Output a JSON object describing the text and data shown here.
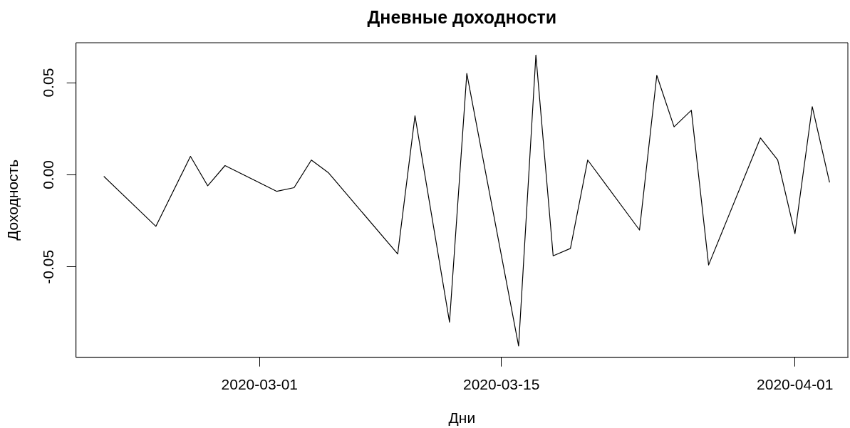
{
  "chart_data": {
    "type": "line",
    "title": "Дневные доходности",
    "xlabel": "Дни",
    "ylabel": "Доходность",
    "x": [
      "2020-02-21",
      "2020-02-24",
      "2020-02-26",
      "2020-02-27",
      "2020-02-28",
      "2020-03-02",
      "2020-03-03",
      "2020-03-04",
      "2020-03-05",
      "2020-03-09",
      "2020-03-10",
      "2020-03-12",
      "2020-03-13",
      "2020-03-16",
      "2020-03-17",
      "2020-03-18",
      "2020-03-19",
      "2020-03-20",
      "2020-03-23",
      "2020-03-24",
      "2020-03-25",
      "2020-03-26",
      "2020-03-27",
      "2020-03-30",
      "2020-03-31",
      "2020-04-01",
      "2020-04-02",
      "2020-04-03"
    ],
    "values": [
      -0.001,
      -0.028,
      0.01,
      -0.006,
      0.005,
      -0.009,
      -0.007,
      0.008,
      0.001,
      -0.043,
      0.032,
      -0.08,
      0.055,
      -0.093,
      0.065,
      -0.044,
      -0.04,
      0.008,
      -0.03,
      0.054,
      0.026,
      0.035,
      -0.049,
      0.02,
      0.008,
      -0.032,
      0.037,
      -0.004
    ],
    "color": "#000000",
    "xlim": [
      "2020-02-19T09:00",
      "2020-04-04T01:30"
    ],
    "xticks": [
      "2020-03-01",
      "2020-03-15",
      "2020-04-01"
    ],
    "ylim": [
      -0.0991,
      0.0717
    ],
    "yticks": [
      -0.05,
      {
        "value": 0,
        "label": "0.00"
      },
      0.05
    ]
  }
}
